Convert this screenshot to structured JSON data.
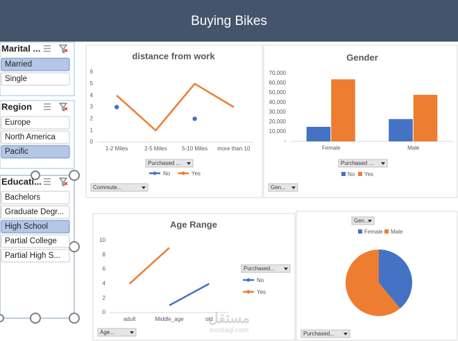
{
  "header": {
    "title": "Buying Bikes"
  },
  "slicers": [
    {
      "title": "Marital ...",
      "items": [
        "Married",
        "Single"
      ],
      "selected": [
        0
      ]
    },
    {
      "title": "Region",
      "items": [
        "Europe",
        "North America",
        "Pacific"
      ],
      "selected": [
        2
      ]
    },
    {
      "title": "Educati...",
      "items": [
        "Bachelors",
        "Graduate Degr...",
        "High School",
        "Partial College",
        "Partial High S..."
      ],
      "selected": [
        2
      ]
    }
  ],
  "chart_data": [
    {
      "type": "line",
      "title": "distance from work",
      "categories": [
        "1-2 Miles",
        "2-5 Miles",
        "5-10 Miles",
        "more than 10"
      ],
      "series": [
        {
          "name": "No",
          "color": "#4472c4",
          "values": [
            3,
            null,
            2,
            null
          ]
        },
        {
          "name": "Yes",
          "color": "#ed7d31",
          "values": [
            4,
            1,
            5,
            3
          ]
        }
      ],
      "ylim": [
        0,
        6
      ],
      "yticks": [
        0,
        1,
        2,
        3,
        4,
        5,
        6
      ],
      "filter_buttons": [
        "Purchased ...",
        "Commute..."
      ]
    },
    {
      "type": "bar",
      "title": "Gender",
      "categories": [
        "Female",
        "Male"
      ],
      "series": [
        {
          "name": "No",
          "color": "#4472c4",
          "values": [
            15000,
            23000
          ]
        },
        {
          "name": "Yes",
          "color": "#ed7d31",
          "values": [
            64000,
            48000
          ]
        }
      ],
      "ylim": [
        0,
        70000
      ],
      "yticks": [
        {
          "value": 0,
          "label": "-"
        },
        {
          "value": 10000,
          "label": "10,000"
        },
        {
          "value": 20000,
          "label": "20,000"
        },
        {
          "value": 30000,
          "label": "30,000"
        },
        {
          "value": 40000,
          "label": "40,000"
        },
        {
          "value": 50000,
          "label": "50,000"
        },
        {
          "value": 60000,
          "label": "60,000"
        },
        {
          "value": 70000,
          "label": "70,000"
        }
      ],
      "filter_buttons": [
        "Purchased ...",
        "Gen..."
      ]
    },
    {
      "type": "line",
      "title": "Age  Range",
      "categories": [
        "adult",
        "Middle_age",
        "old"
      ],
      "series": [
        {
          "name": "No",
          "color": "#4472c4",
          "values": [
            null,
            1,
            4
          ]
        },
        {
          "name": "Yes",
          "color": "#ed7d31",
          "values": [
            4,
            9,
            null
          ]
        }
      ],
      "ylim": [
        0,
        10
      ],
      "yticks": [
        0,
        2,
        4,
        6,
        8,
        10
      ],
      "filter_buttons": [
        "Purchased...",
        "Age..."
      ]
    },
    {
      "type": "pie",
      "categories": [
        "Female",
        "Male"
      ],
      "values": [
        39,
        61
      ],
      "colors": [
        "#4472c4",
        "#ed7d31"
      ],
      "filter_buttons": [
        "Gen...",
        "Purchased..."
      ]
    }
  ],
  "watermark": [
    "مستقل",
    "mostaql.com"
  ]
}
